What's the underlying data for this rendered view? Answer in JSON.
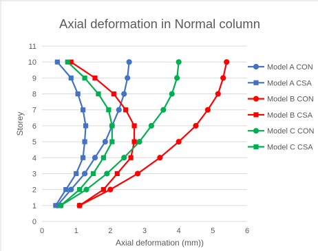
{
  "chart_data": {
    "type": "line",
    "title": "Axial deformation  in Normal column",
    "xlabel": "Axial deformation (mm))",
    "ylabel": "Storey",
    "xlim": [
      0,
      6
    ],
    "ylim": [
      0,
      11
    ],
    "x_ticks": [
      "0",
      "1",
      "2",
      "3",
      "4",
      "5",
      "6"
    ],
    "y_ticks": [
      "0",
      "1",
      "2",
      "3",
      "4",
      "5",
      "6",
      "7",
      "8",
      "9",
      "10",
      "11"
    ],
    "grid": "horizontal",
    "legend_position": "right",
    "storeys": [
      1,
      2,
      3,
      4,
      5,
      6,
      7,
      8,
      9,
      10
    ],
    "series": [
      {
        "name": "Model A CON",
        "color": "#4472c4",
        "marker": "circle",
        "x": [
          0.45,
          0.85,
          1.25,
          1.55,
          1.85,
          2.05,
          2.25,
          2.4,
          2.5,
          2.55
        ]
      },
      {
        "name": "Model A CSA",
        "color": "#4472c4",
        "marker": "square",
        "x": [
          0.4,
          0.7,
          1.0,
          1.2,
          1.25,
          1.28,
          1.2,
          1.05,
          0.85,
          0.45
        ]
      },
      {
        "name": "Model B CON",
        "color": "#ff0000",
        "marker": "circle",
        "x": [
          1.1,
          2.0,
          2.8,
          3.45,
          4.0,
          4.5,
          4.85,
          5.15,
          5.3,
          5.4
        ]
      },
      {
        "name": "Model B CSA",
        "color": "#ff0000",
        "marker": "square",
        "x": [
          1.1,
          1.8,
          2.2,
          2.6,
          2.7,
          2.7,
          2.45,
          2.1,
          1.55,
          0.85
        ]
      },
      {
        "name": "Model C CON",
        "color": "#00b050",
        "marker": "circle",
        "x": [
          0.55,
          1.3,
          1.9,
          2.4,
          2.85,
          3.2,
          3.55,
          3.8,
          3.95,
          4.0
        ]
      },
      {
        "name": "Model C CSA",
        "color": "#00b050",
        "marker": "square",
        "x": [
          0.55,
          1.1,
          1.5,
          1.8,
          2.05,
          2.05,
          1.95,
          1.65,
          1.25,
          0.75
        ]
      }
    ]
  }
}
